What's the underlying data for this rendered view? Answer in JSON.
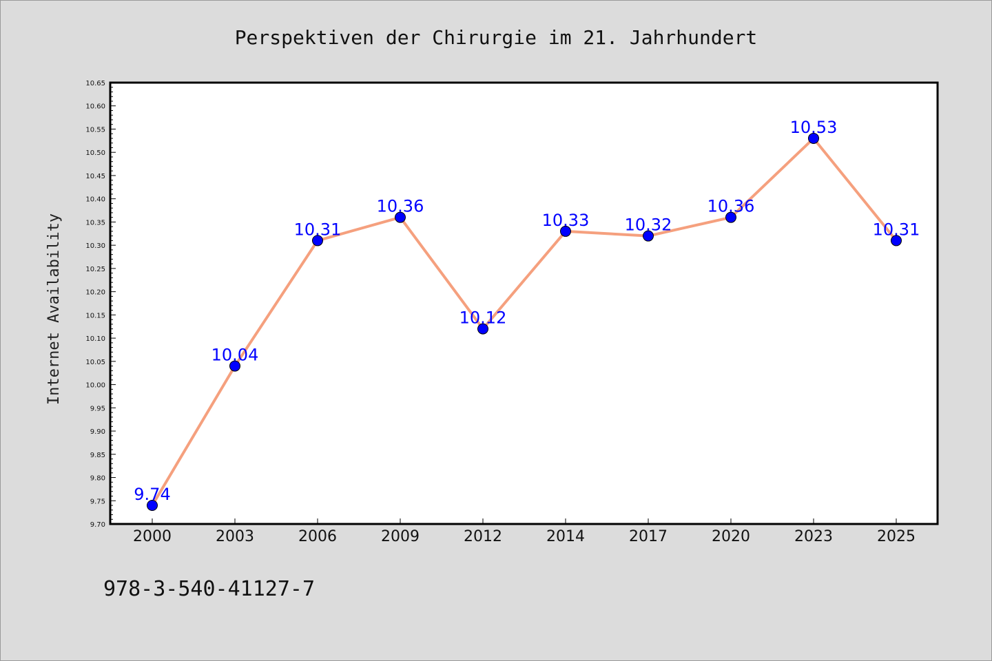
{
  "chart_data": {
    "type": "line",
    "title": "Perspektiven der Chirurgie im 21. Jahrhundert",
    "xlabel": "",
    "ylabel": "Internet Availability",
    "categories": [
      "2000",
      "2003",
      "2006",
      "2009",
      "2012",
      "2014",
      "2017",
      "2020",
      "2023",
      "2025"
    ],
    "series": [
      {
        "values": [
          9.74,
          10.04,
          10.31,
          10.36,
          10.12,
          10.33,
          10.32,
          10.36,
          10.53,
          10.31
        ],
        "labels": [
          "9.74",
          "10.04",
          "10.31",
          "10.36",
          "10.12",
          "10.33",
          "10.32",
          "10.36",
          "10.53",
          "10.31"
        ],
        "line_color": "#f5a07e",
        "marker_color": "#0000ff"
      }
    ],
    "ylim": [
      9.7,
      10.65
    ],
    "yticks": [
      "9.70",
      "9.75",
      "9.80",
      "9.85",
      "9.90",
      "9.95",
      "10.00",
      "10.05",
      "10.10",
      "10.15",
      "10.20",
      "10.25",
      "10.30",
      "10.35",
      "10.40",
      "10.45",
      "10.50",
      "10.55",
      "10.60",
      "10.65"
    ],
    "grid": false,
    "legend": "none",
    "footer": "978-3-540-41127-7"
  }
}
